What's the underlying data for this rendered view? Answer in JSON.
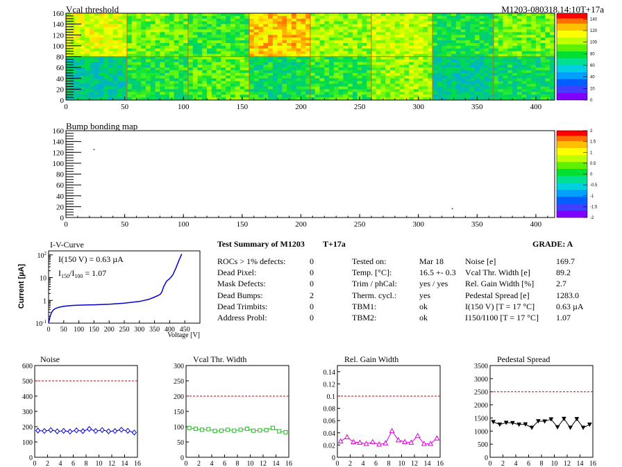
{
  "header": {
    "map1_title": "Vcal threshold",
    "module_id": "M1203-080318.14:10T+17a",
    "map2_title": "Bump bonding map"
  },
  "colors": {
    "blue_series": "#0000dd",
    "green_series": "#22bb22",
    "magenta_series": "#dd00dd",
    "black_series": "#000000",
    "limit_line": "#cc0000",
    "iv_curve": "#0000cc"
  },
  "chart_data": [
    {
      "id": "vcal_map",
      "type": "heatmap",
      "title": "Vcal threshold",
      "xlim": [
        0,
        416
      ],
      "ylim": [
        0,
        160
      ],
      "xticks": [
        0,
        50,
        100,
        150,
        200,
        250,
        300,
        350,
        400
      ],
      "yticks": [
        0,
        20,
        40,
        60,
        80,
        100,
        120,
        140,
        160
      ],
      "color_scale": {
        "min": 0,
        "max": 150,
        "ticks": [
          0,
          20,
          40,
          60,
          80,
          100,
          120,
          140
        ]
      }
    },
    {
      "id": "bump_map",
      "type": "heatmap",
      "title": "Bump bonding map",
      "xlim": [
        0,
        416
      ],
      "ylim": [
        0,
        160
      ],
      "xticks": [
        0,
        50,
        100,
        150,
        200,
        250,
        300,
        350,
        400
      ],
      "yticks": [
        0,
        20,
        40,
        60,
        80,
        100,
        120,
        140,
        160
      ],
      "color_scale": {
        "min": -2,
        "max": 2,
        "ticks": [
          -2,
          -1.5,
          -1,
          -0.5,
          0,
          0.5,
          1,
          1.5,
          2
        ]
      },
      "points": [
        {
          "x": 24,
          "y": 125
        },
        {
          "x": 329,
          "y": 16
        }
      ]
    },
    {
      "id": "iv_curve",
      "type": "line",
      "title": "I-V-Curve",
      "xlabel": "Voltage [V]",
      "ylabel": "Current [µA]",
      "xlim": [
        0,
        500
      ],
      "ylim": [
        0.1,
        150
      ],
      "yscale": "log",
      "xticks": [
        0,
        50,
        100,
        150,
        200,
        250,
        300,
        350,
        400,
        450
      ],
      "annotation1": "I(150 V) = 0.63 µA",
      "annotation2_a": "I",
      "annotation2_sub1": "150",
      "annotation2_b": "/I",
      "annotation2_sub2": "100",
      "annotation2_c": " =  1.07",
      "x": [
        0,
        5,
        10,
        15,
        20,
        30,
        40,
        50,
        60,
        80,
        100,
        150,
        200,
        250,
        300,
        330,
        350,
        360,
        370,
        375,
        380,
        390,
        400,
        410,
        420,
        430,
        440
      ],
      "y": [
        0.1,
        0.2,
        0.3,
        0.37,
        0.42,
        0.48,
        0.52,
        0.55,
        0.57,
        0.6,
        0.62,
        0.64,
        0.68,
        0.75,
        0.9,
        1.1,
        1.4,
        1.6,
        1.9,
        2.5,
        4,
        7,
        9,
        13,
        25,
        55,
        110
      ]
    },
    {
      "id": "noise",
      "type": "line",
      "title": "Noise",
      "xlim": [
        0,
        16
      ],
      "ylim": [
        0,
        600
      ],
      "xticks": [
        0,
        2,
        4,
        6,
        8,
        10,
        12,
        14,
        16
      ],
      "yticks": [
        0,
        100,
        200,
        300,
        400,
        500,
        600
      ],
      "limit": 500,
      "x": [
        0.5,
        1.5,
        2.5,
        3.5,
        4.5,
        5.5,
        6.5,
        7.5,
        8.5,
        9.5,
        10.5,
        11.5,
        12.5,
        13.5,
        14.5,
        15.5
      ],
      "y": [
        175,
        172,
        178,
        170,
        173,
        168,
        176,
        171,
        185,
        172,
        178,
        170,
        172,
        180,
        173,
        162
      ]
    },
    {
      "id": "vcal_width",
      "type": "line",
      "title": "Vcal Thr. Width",
      "xlim": [
        0,
        16
      ],
      "ylim": [
        0,
        300
      ],
      "xticks": [
        0,
        2,
        4,
        6,
        8,
        10,
        12,
        14,
        16
      ],
      "yticks": [
        0,
        50,
        100,
        150,
        200,
        250,
        300
      ],
      "limit": 200,
      "x": [
        0.5,
        1.5,
        2.5,
        3.5,
        4.5,
        5.5,
        6.5,
        7.5,
        8.5,
        9.5,
        10.5,
        11.5,
        12.5,
        13.5,
        14.5,
        15.5
      ],
      "y": [
        96,
        93,
        90,
        92,
        86,
        87,
        90,
        87,
        90,
        93,
        87,
        88,
        89,
        96,
        85,
        82
      ]
    },
    {
      "id": "gain_width",
      "type": "line",
      "title": "Rel. Gain Width",
      "xlim": [
        0,
        16
      ],
      "ylim": [
        0,
        0.15
      ],
      "xticks": [
        0,
        2,
        4,
        6,
        8,
        10,
        12,
        14,
        16
      ],
      "yticks": [
        0,
        0.02,
        0.04,
        0.06,
        0.08,
        0.1,
        0.12,
        0.14
      ],
      "limit": 0.1,
      "x": [
        0.5,
        1.5,
        2.5,
        3.5,
        4.5,
        5.5,
        6.5,
        7.5,
        8.5,
        9.5,
        10.5,
        11.5,
        12.5,
        13.5,
        14.5,
        15.5
      ],
      "y": [
        0.026,
        0.033,
        0.025,
        0.024,
        0.022,
        0.025,
        0.021,
        0.023,
        0.043,
        0.028,
        0.025,
        0.024,
        0.035,
        0.022,
        0.022,
        0.031
      ]
    },
    {
      "id": "pedestal",
      "type": "line",
      "title": "Pedestal Spread",
      "xlim": [
        0,
        16
      ],
      "ylim": [
        0,
        3500
      ],
      "xticks": [
        0,
        2,
        4,
        6,
        8,
        10,
        12,
        14,
        16
      ],
      "yticks": [
        0,
        500,
        1000,
        1500,
        2000,
        2500,
        3000,
        3500
      ],
      "limit": 2500,
      "x": [
        0.5,
        1.5,
        2.5,
        3.5,
        4.5,
        5.5,
        6.5,
        7.5,
        8.5,
        9.5,
        10.5,
        11.5,
        12.5,
        13.5,
        14.5,
        15.5
      ],
      "y": [
        1350,
        1250,
        1320,
        1310,
        1250,
        1260,
        1130,
        1380,
        1370,
        1450,
        1150,
        1470,
        1130,
        1460,
        1130,
        1250
      ]
    }
  ],
  "summary": {
    "title": "Test Summary of M1203",
    "temp_label": "T+17a",
    "grade": "GRADE:  A",
    "col1": [
      {
        "label": "ROCs > 1% defects:",
        "value": "0"
      },
      {
        "label": "Dead Pixel:",
        "value": "0"
      },
      {
        "label": "Mask Defects:",
        "value": "0"
      },
      {
        "label": "Dead Bumps:",
        "value": "2"
      },
      {
        "label": "Dead Trimbits:",
        "value": "0"
      },
      {
        "label": "Address Probl:",
        "value": "0"
      }
    ],
    "col2": [
      {
        "label": "Tested on:",
        "value": "Mar 18"
      },
      {
        "label": "Temp. [°C]:",
        "value": "16.5 +- 0.3"
      },
      {
        "label": "Trim / phCal:",
        "value": "yes / yes"
      },
      {
        "label": "Therm. cycl.:",
        "value": "yes"
      },
      {
        "label": "TBM1:",
        "value": "ok"
      },
      {
        "label": "TBM2:",
        "value": "ok"
      }
    ],
    "col3": [
      {
        "label": "Noise [e]",
        "value": "169.7"
      },
      {
        "label": "Vcal Thr. Width [e]",
        "value": "89.2"
      },
      {
        "label": "Rel. Gain Width [%]",
        "value": "2.7"
      },
      {
        "label": "Pedestal Spread [e]",
        "value": "1283.0"
      },
      {
        "label": "I(150 V) [T = 17 °C]",
        "value": "0.63 µA"
      },
      {
        "label": "I150/I100  [T = 17 °C]",
        "value": "1.07"
      }
    ]
  }
}
